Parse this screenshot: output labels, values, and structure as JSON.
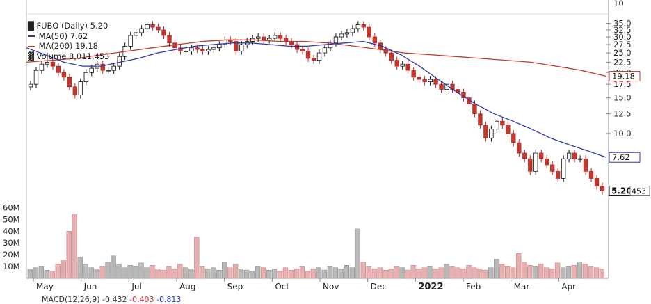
{
  "chart_data": {
    "type": "candlestick",
    "ticker_label": "FUBO (Daily) 5.20",
    "legend": [
      {
        "label": "MA(50) 7.62",
        "color": "#2d3aa8"
      },
      {
        "label": "MA(200) 19.18",
        "color": "#c0392b"
      },
      {
        "label": "Volume 8,011,453",
        "color": "#888888"
      }
    ],
    "price_axis": {
      "scale": "log",
      "ticks": [
        "35.0",
        "32.5",
        "30.0",
        "27.5",
        "25.0",
        "22.5",
        "20.0",
        "17.5",
        "15.0",
        "12.5",
        "10.0"
      ],
      "top_partial_tick": "10"
    },
    "volume_axis": {
      "ticks": [
        "60M",
        "50M",
        "40M",
        "30M",
        "20M",
        "10M"
      ],
      "ylim": [
        0,
        65000000
      ]
    },
    "x_months": [
      "May",
      "Jun",
      "Jul",
      "Aug",
      "Sep",
      "Oct",
      "Nov",
      "Dec",
      "2022",
      "Feb",
      "Mar",
      "Apr"
    ],
    "price_series": [
      17.5,
      20.5,
      22.0,
      22.5,
      21.5,
      20.0,
      19.0,
      17.0,
      15.5,
      18.0,
      20.0,
      21.0,
      22.0,
      20.5,
      20.5,
      21.5,
      24.0,
      27.0,
      30.5,
      31.5,
      33.0,
      34.5,
      33.5,
      32.5,
      30.5,
      28.0,
      26.5,
      25.5,
      25.5,
      26.5,
      26.0,
      25.5,
      26.0,
      26.5,
      27.5,
      29.0,
      28.5,
      25.5,
      27.5,
      28.5,
      29.5,
      30.0,
      29.0,
      29.5,
      30.5,
      29.5,
      28.5,
      27.5,
      26.0,
      25.5,
      23.5,
      23.0,
      25.0,
      26.5,
      28.0,
      30.0,
      31.0,
      31.5,
      33.0,
      34.5,
      33.5,
      30.0,
      28.0,
      26.0,
      25.0,
      23.0,
      21.5,
      22.0,
      20.5,
      19.0,
      18.5,
      18.0,
      18.5,
      17.5,
      16.5,
      17.5,
      16.5,
      16.0,
      15.0,
      14.0,
      12.5,
      11.0,
      9.5,
      10.5,
      11.5,
      11.0,
      10.0,
      9.0,
      8.0,
      7.5,
      6.5,
      8.0,
      7.5,
      7.0,
      6.5,
      6.0,
      7.5,
      8.0,
      7.5,
      7.5,
      6.5,
      6.0,
      5.5,
      5.2
    ],
    "ma50_series": [
      26.5,
      24.5,
      22.5,
      21.5,
      21.5,
      22.5,
      23.5,
      25.0,
      26.0,
      27.0,
      27.5,
      28.0,
      28.0,
      27.5,
      27.0,
      27.0,
      27.5,
      28.0,
      28.5,
      27.0,
      24.5,
      21.5,
      18.5,
      16.0,
      14.0,
      12.5,
      11.5,
      10.5,
      9.5,
      8.8,
      8.2,
      7.62
    ],
    "ma200_series": [
      22.5,
      23.0,
      23.5,
      24.5,
      25.5,
      26.5,
      27.5,
      28.5,
      29.0,
      29.0,
      28.5,
      28.5,
      28.0,
      27.0,
      26.0,
      25.0,
      24.5,
      24.0,
      23.5,
      23.0,
      22.5,
      21.5,
      20.5,
      19.18
    ],
    "volume_series_m": [
      8,
      9,
      10,
      7,
      6,
      12,
      15,
      40,
      54,
      18,
      12,
      9,
      8,
      10,
      14,
      19,
      12,
      9,
      11,
      10,
      13,
      9,
      11,
      8,
      7,
      10,
      8,
      12,
      9,
      8,
      35,
      10,
      8,
      9,
      7,
      14,
      9,
      12,
      8,
      7,
      6,
      10,
      9,
      7,
      8,
      6,
      9,
      7,
      8,
      10,
      6,
      8,
      9,
      7,
      10,
      9,
      8,
      11,
      9,
      42,
      14,
      10,
      8,
      9,
      7,
      8,
      10,
      9,
      7,
      11,
      8,
      9,
      10,
      8,
      9,
      12,
      10,
      9,
      8,
      11,
      9,
      8,
      7,
      9,
      16,
      12,
      10,
      9,
      21,
      14,
      11,
      10,
      12,
      9,
      8,
      13,
      9,
      10,
      11,
      14,
      12,
      10,
      9,
      8
    ],
    "last_price_label": "5.20",
    "last_volume_label": "453",
    "ma50_label": "7.62",
    "ma200_label": "19.18"
  },
  "bottom_strip": {
    "text": "MACD(12,26,9) -0.432",
    "red_value": "-0.403",
    "blue_value": "-0.813"
  }
}
